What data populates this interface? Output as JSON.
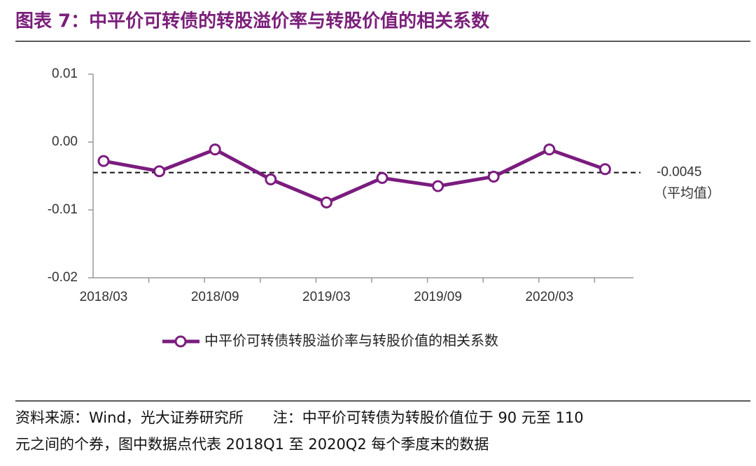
{
  "chart_data": {
    "type": "line",
    "title": "图表 7：中平价可转债的转股溢价率与转股价值的相关系数",
    "categories": [
      "2018/03",
      null,
      "2018/09",
      null,
      "2019/03",
      null,
      "2019/09",
      null,
      "2020/03",
      null
    ],
    "series": [
      {
        "name": "中平价可转债转股溢价率与转股价值的相关系数",
        "color": "#7b1c7e",
        "values": [
          -0.0028,
          -0.0043,
          -0.0011,
          -0.0055,
          -0.0089,
          -0.0053,
          -0.0065,
          -0.0051,
          -0.0011,
          -0.004
        ]
      }
    ],
    "ylim": [
      -0.02,
      0.01
    ],
    "yticks": [
      0.01,
      {
        "value": 0,
        "label": "0.00"
      },
      -0.01,
      -0.02
    ],
    "mean": -0.0045,
    "mean_label": "（平均值）",
    "notes": [
      "资料来源：Wind，光大证券研究所　　注：中平价可转债为转股价值位于 90 元至 110",
      "元之间的个券，图中数据点代表 2018Q1 至 2020Q2 每个季度末的数据"
    ]
  }
}
